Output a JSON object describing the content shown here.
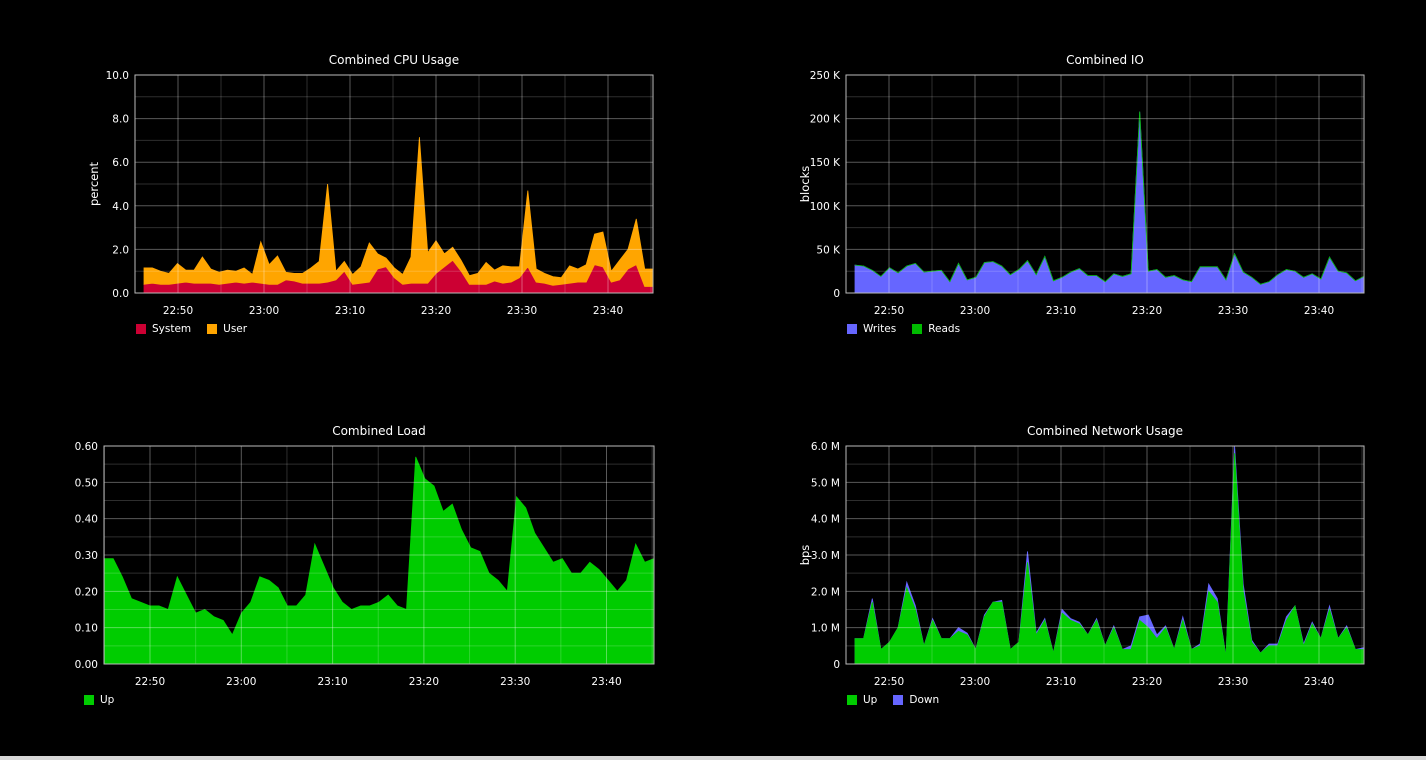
{
  "colors": {
    "system": "#cc0033",
    "user": "#ffa500",
    "writes": "#6666ff",
    "reads": "#00bb00",
    "load": "#00cc00",
    "net_up": "#00cc00",
    "net_down": "#6666ff"
  },
  "chart_data": [
    {
      "id": "cpu",
      "type": "area",
      "stacked": true,
      "title": "Combined CPU Usage",
      "ylabel": "percent",
      "ylim": [
        0,
        10
      ],
      "yticks": [
        0,
        2,
        4,
        6,
        8,
        10
      ],
      "ytick_labels": [
        "0.0",
        "2.0",
        "4.0",
        "6.0",
        "8.0",
        "10.0"
      ],
      "xtick_labels": [
        "22:50",
        "23:00",
        "23:10",
        "23:20",
        "23:30",
        "23:40"
      ],
      "grid": true,
      "series": [
        {
          "name": "System",
          "color": "#cc0033",
          "values": [
            0.4,
            0.45,
            0.4,
            0.4,
            0.45,
            0.5,
            0.45,
            0.45,
            0.45,
            0.4,
            0.45,
            0.5,
            0.45,
            0.5,
            0.45,
            0.4,
            0.4,
            0.6,
            0.55,
            0.45,
            0.45,
            0.45,
            0.5,
            0.6,
            1.0,
            0.4,
            0.45,
            0.5,
            1.1,
            1.2,
            0.7,
            0.4,
            0.45,
            0.45,
            0.45,
            0.9,
            1.2,
            1.5,
            1.0,
            0.4,
            0.4,
            0.4,
            0.55,
            0.45,
            0.5,
            0.7,
            1.2,
            0.5,
            0.45,
            0.35,
            0.4,
            0.45,
            0.5,
            0.5,
            1.3,
            1.2,
            0.5,
            0.6,
            1.1,
            1.3,
            0.3,
            0.3
          ]
        },
        {
          "name": "User",
          "color": "#ffa500",
          "values": [
            0.75,
            0.7,
            0.6,
            0.5,
            0.9,
            0.55,
            0.6,
            1.2,
            0.65,
            0.55,
            0.6,
            0.5,
            0.7,
            0.35,
            1.9,
            0.9,
            1.3,
            0.35,
            0.35,
            0.45,
            0.7,
            1.0,
            4.5,
            0.4,
            0.45,
            0.45,
            0.75,
            1.8,
            0.7,
            0.4,
            0.45,
            0.45,
            1.2,
            6.7,
            1.4,
            1.5,
            0.6,
            0.6,
            0.5,
            0.4,
            0.5,
            1.0,
            0.5,
            0.8,
            0.7,
            0.5,
            3.5,
            0.6,
            0.45,
            0.4,
            0.3,
            0.8,
            0.6,
            0.8,
            1.4,
            1.6,
            0.5,
            0.9,
            0.9,
            2.1,
            0.8,
            0.8
          ]
        }
      ],
      "legend": [
        {
          "label": "System",
          "color": "#cc0033"
        },
        {
          "label": "User",
          "color": "#ffa500"
        }
      ]
    },
    {
      "id": "io",
      "type": "area",
      "stacked": true,
      "title": "Combined IO",
      "ylabel": "blocks",
      "ylim": [
        0,
        250000
      ],
      "yticks": [
        0,
        50000,
        100000,
        150000,
        200000,
        250000
      ],
      "ytick_labels": [
        "0",
        "50 K",
        "100 K",
        "150 K",
        "200 K",
        "250 K"
      ],
      "xtick_labels": [
        "22:50",
        "23:00",
        "23:10",
        "23:20",
        "23:30",
        "23:40"
      ],
      "grid": true,
      "series": [
        {
          "name": "Writes",
          "color": "#6666ff",
          "values": [
            32000,
            31000,
            26000,
            19000,
            29000,
            23000,
            31000,
            34000,
            24000,
            25000,
            26000,
            13000,
            34000,
            15000,
            18000,
            35000,
            36000,
            31000,
            21000,
            27000,
            37000,
            21000,
            42000,
            14000,
            18000,
            24000,
            28000,
            20000,
            20000,
            13000,
            22000,
            19000,
            22000,
            208000,
            25000,
            27000,
            18000,
            20000,
            15000,
            13000,
            30000,
            30000,
            30000,
            15000,
            45000,
            24000,
            18000,
            10000,
            13000,
            21000,
            27000,
            25000,
            18000,
            22000,
            16000,
            41000,
            25000,
            23000,
            14000,
            19000
          ]
        },
        {
          "name": "Reads",
          "color": "#00bb00",
          "values": [
            0,
            0,
            0,
            0,
            0,
            0,
            0,
            0,
            0,
            0,
            0,
            0,
            0,
            0,
            0,
            0,
            0,
            0,
            0,
            0,
            0,
            0,
            0,
            0,
            0,
            0,
            0,
            0,
            0,
            0,
            0,
            0,
            0,
            0,
            0,
            0,
            0,
            0,
            0,
            0,
            0,
            0,
            0,
            0,
            0,
            0,
            0,
            0,
            0,
            0,
            0,
            0,
            0,
            0,
            0,
            0,
            0,
            0,
            0,
            0
          ]
        }
      ],
      "legend": [
        {
          "label": "Writes",
          "color": "#6666ff"
        },
        {
          "label": "Reads",
          "color": "#00bb00"
        }
      ]
    },
    {
      "id": "load",
      "type": "area",
      "stacked": false,
      "title": "Combined Load",
      "ylabel": "",
      "ylim": [
        0,
        0.6
      ],
      "yticks": [
        0,
        0.1,
        0.2,
        0.3,
        0.4,
        0.5,
        0.6
      ],
      "ytick_labels": [
        "0.00",
        "0.10",
        "0.20",
        "0.30",
        "0.40",
        "0.50",
        "0.60"
      ],
      "xtick_labels": [
        "22:50",
        "23:00",
        "23:10",
        "23:20",
        "23:30",
        "23:40"
      ],
      "grid": true,
      "series": [
        {
          "name": "Up",
          "color": "#00cc00",
          "values": [
            0.29,
            0.29,
            0.24,
            0.18,
            0.17,
            0.16,
            0.16,
            0.15,
            0.24,
            0.19,
            0.14,
            0.15,
            0.13,
            0.12,
            0.08,
            0.14,
            0.17,
            0.24,
            0.23,
            0.21,
            0.16,
            0.16,
            0.19,
            0.33,
            0.27,
            0.21,
            0.17,
            0.15,
            0.16,
            0.16,
            0.17,
            0.19,
            0.16,
            0.15,
            0.57,
            0.51,
            0.49,
            0.42,
            0.44,
            0.37,
            0.32,
            0.31,
            0.25,
            0.23,
            0.2,
            0.46,
            0.43,
            0.36,
            0.32,
            0.28,
            0.29,
            0.25,
            0.25,
            0.28,
            0.26,
            0.23,
            0.2,
            0.23,
            0.33,
            0.28,
            0.29
          ]
        }
      ],
      "legend": [
        {
          "label": "Up",
          "color": "#00cc00"
        }
      ]
    },
    {
      "id": "net",
      "type": "area",
      "stacked": false,
      "title": "Combined Network Usage",
      "ylabel": "bps",
      "ylim": [
        0,
        6000000
      ],
      "yticks": [
        0,
        1000000,
        2000000,
        3000000,
        4000000,
        5000000,
        6000000
      ],
      "ytick_labels": [
        "0",
        "1.0 M",
        "2.0 M",
        "3.0 M",
        "4.0 M",
        "5.0 M",
        "6.0 M"
      ],
      "xtick_labels": [
        "22:50",
        "23:00",
        "23:10",
        "23:20",
        "23:30",
        "23:40"
      ],
      "grid": true,
      "series": [
        {
          "name": "Up",
          "color": "#00cc00",
          "values": [
            700000,
            700000,
            1700000,
            400000,
            600000,
            1000000,
            2100000,
            1500000,
            500000,
            1200000,
            700000,
            700000,
            900000,
            800000,
            400000,
            1300000,
            1700000,
            1700000,
            400000,
            600000,
            2800000,
            800000,
            1200000,
            300000,
            1400000,
            1200000,
            1100000,
            800000,
            1200000,
            500000,
            1000000,
            400000,
            400000,
            1200000,
            1000000,
            700000,
            1000000,
            400000,
            1200000,
            400000,
            500000,
            2000000,
            1700000,
            200000,
            5800000,
            2000000,
            600000,
            300000,
            500000,
            500000,
            1200000,
            1600000,
            500000,
            1100000,
            700000,
            1500000,
            700000,
            1000000,
            400000,
            400000
          ]
        },
        {
          "name": "Down",
          "color": "#6666ff",
          "values": [
            700000,
            700000,
            1800000,
            400000,
            600000,
            1000000,
            2250000,
            1600000,
            500000,
            1250000,
            700000,
            700000,
            1000000,
            850000,
            400000,
            1350000,
            1700000,
            1750000,
            400000,
            600000,
            3100000,
            850000,
            1250000,
            300000,
            1500000,
            1250000,
            1150000,
            800000,
            1250000,
            500000,
            1050000,
            400000,
            500000,
            1300000,
            1350000,
            800000,
            1050000,
            400000,
            1300000,
            400000,
            550000,
            2200000,
            1800000,
            200000,
            6000000,
            2200000,
            650000,
            300000,
            550000,
            550000,
            1300000,
            1600000,
            550000,
            1150000,
            700000,
            1600000,
            700000,
            1050000,
            400000,
            450000
          ]
        }
      ],
      "legend": [
        {
          "label": "Up",
          "color": "#00cc00"
        },
        {
          "label": "Down",
          "color": "#6666ff"
        }
      ]
    }
  ]
}
